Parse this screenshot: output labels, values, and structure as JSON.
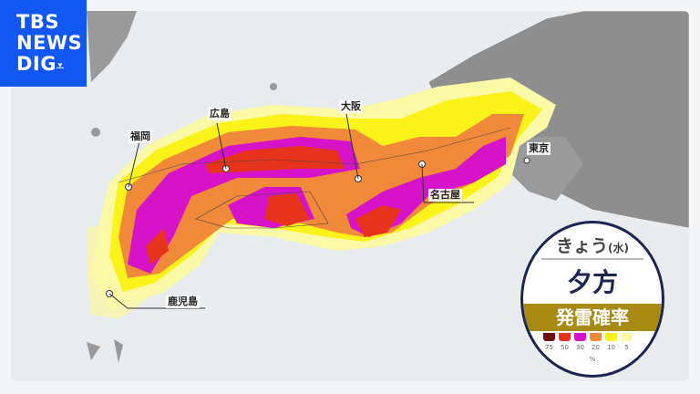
{
  "logo": {
    "line1": "TBS",
    "line2": "NEWS",
    "line3": "DIG"
  },
  "cities": [
    {
      "name": "広島"
    },
    {
      "name": "大阪"
    },
    {
      "name": "福岡"
    },
    {
      "name": "名古屋"
    },
    {
      "name": "東京"
    },
    {
      "name": "鹿児島"
    }
  ],
  "badge": {
    "day": "きょう",
    "weekday": "(水)",
    "time": "夕方",
    "title": "発雷確率",
    "unit": "%"
  },
  "legend": [
    {
      "value": "75",
      "color": "#6b0f12"
    },
    {
      "value": "50",
      "color": "#e8331c"
    },
    {
      "value": "30",
      "color": "#d613c9"
    },
    {
      "value": "20",
      "color": "#f08a3a"
    },
    {
      "value": "10",
      "color": "#fbf21a"
    },
    {
      "value": "5",
      "color": "#fbf8a6"
    }
  ],
  "colors": {
    "land": "#8e8e8e",
    "sea": "#e9ecef",
    "brand": "#1357f2"
  }
}
